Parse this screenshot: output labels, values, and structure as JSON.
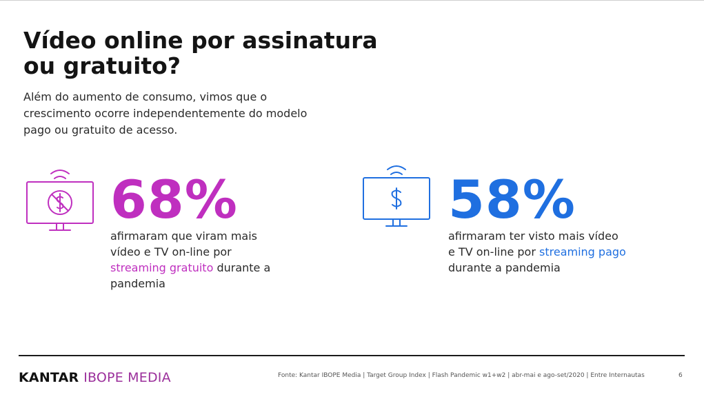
{
  "slide": {
    "title": "Vídeo online por assinatura ou gratuito?",
    "subtitle": "Além do aumento de consumo, vimos que o crescimento ocorre independentemente do modelo pago ou gratuito de acesso."
  },
  "stats": [
    {
      "value": "68%",
      "icon": "tv-no-dollar-icon",
      "color": "#bf2fbf",
      "text_before": "afirmaram que viram mais vídeo e TV on-line por ",
      "highlight": "streaming gratuito",
      "text_after": " durante a pandemia"
    },
    {
      "value": "58%",
      "icon": "tv-dollar-icon",
      "color": "#1f6fe0",
      "text_before": "afirmaram ter visto mais vídeo e TV on-line por ",
      "highlight": "streaming pago",
      "text_after": " durante a pandemia"
    }
  ],
  "footer": {
    "logo_primary": "KANTAR",
    "logo_secondary": "IBOPE MEDIA",
    "source": "Fonte: Kantar IBOPE Media | Target Group Index | Flash Pandemic w1+w2 | abr-mai e ago-set/2020 | Entre Internautas",
    "page": "6"
  }
}
